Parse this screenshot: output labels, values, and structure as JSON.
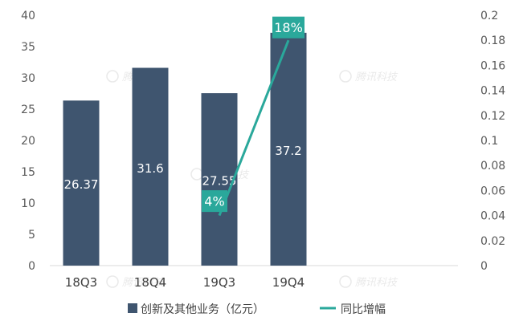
{
  "chart_data": {
    "type": "bar",
    "categories": [
      "18Q3",
      "18Q4",
      "19Q3",
      "19Q4"
    ],
    "series": [
      {
        "name": "创新及其他业务（亿元）",
        "type": "bar",
        "axis": "left",
        "values": [
          26.37,
          31.6,
          27.55,
          37.2
        ],
        "labels": [
          "26.37",
          "31.6",
          "27.55",
          "37.2"
        ],
        "color": "#3f556f"
      },
      {
        "name": "同比增幅",
        "type": "line",
        "axis": "right",
        "x": [
          "19Q3",
          "19Q4"
        ],
        "values": [
          0.04,
          0.18
        ],
        "labels": [
          "4%",
          "18%"
        ],
        "color": "#2aa89b"
      }
    ],
    "y_left": {
      "ylim": [
        0,
        40
      ],
      "ticks": [
        "0",
        "5",
        "10",
        "15",
        "20",
        "25",
        "30",
        "35",
        "40"
      ]
    },
    "y_right": {
      "ylim": [
        0,
        0.2
      ],
      "ticks": [
        "0",
        "0.02",
        "0.04",
        "0.06",
        "0.08",
        "0.1",
        "0.12",
        "0.14",
        "0.16",
        "0.18",
        "0.2"
      ]
    },
    "grid": false,
    "legend_position": "bottom",
    "title": "",
    "xlabel": "",
    "ylabel": "",
    "watermark": "腾讯科技"
  }
}
